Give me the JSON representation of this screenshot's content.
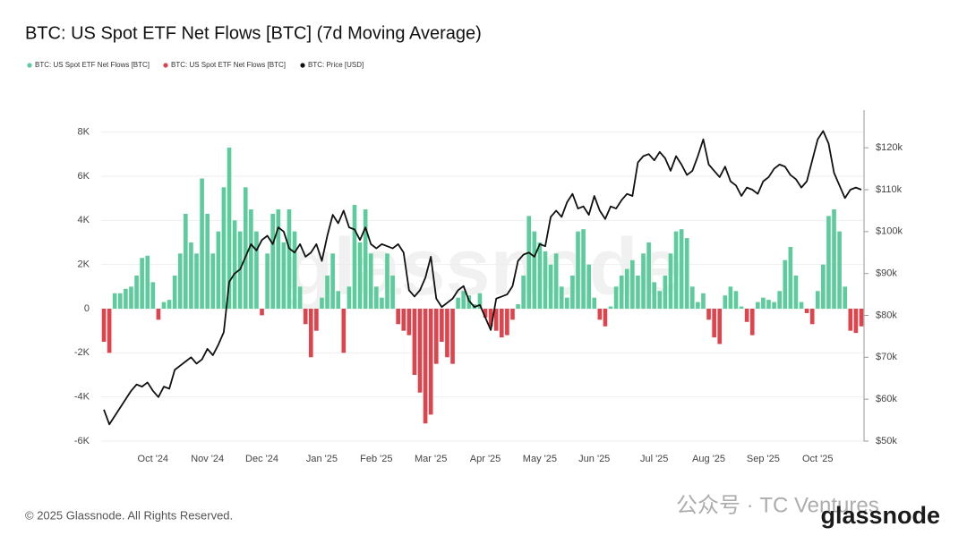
{
  "chart_data": {
    "type": "bar_line",
    "title": "BTC: US Spot ETF Net Flows [BTC] (7d Moving Average)",
    "watermark": "glassnode",
    "copyright": "© 2025 Glassnode. All Rights Reserved.",
    "logo": "glassnode",
    "channel_watermark": "公众号 · TC Ventures",
    "categories": [
      null,
      null,
      null,
      null,
      null,
      null,
      null,
      null,
      null,
      "Oct '24",
      null,
      null,
      null,
      null,
      null,
      null,
      null,
      null,
      null,
      "Nov '24",
      null,
      null,
      null,
      null,
      null,
      null,
      null,
      null,
      null,
      "Dec '24",
      null,
      null,
      null,
      null,
      null,
      null,
      null,
      null,
      null,
      null,
      "Jan '25",
      null,
      null,
      null,
      null,
      null,
      null,
      null,
      null,
      null,
      "Feb '25",
      null,
      null,
      null,
      null,
      null,
      null,
      null,
      null,
      null,
      "Mar '25",
      null,
      null,
      null,
      null,
      null,
      null,
      null,
      null,
      null,
      "Apr '25",
      null,
      null,
      null,
      null,
      null,
      null,
      null,
      null,
      null,
      "May '25",
      null,
      null,
      null,
      null,
      null,
      null,
      null,
      null,
      null,
      "Jun '25",
      null,
      null,
      null,
      null,
      null,
      null,
      null,
      null,
      null,
      null,
      "Jul '25",
      null,
      null,
      null,
      null,
      null,
      null,
      null,
      null,
      null,
      "Aug '25",
      null,
      null,
      null,
      null,
      null,
      null,
      null,
      null,
      null,
      "Sep '25",
      null,
      null,
      null,
      null,
      null,
      null,
      null,
      null,
      null,
      "Oct '25",
      null,
      null,
      null,
      null,
      null,
      null,
      null,
      null
    ],
    "series": [
      {
        "name": "BTC: US Spot ETF Net Flows [BTC]",
        "color": "#5ccc9c",
        "values": [
          null,
          null,
          700,
          700,
          900,
          1000,
          1500,
          2300,
          2400,
          1200,
          null,
          300,
          400,
          1500,
          2500,
          4300,
          3000,
          2500,
          5900,
          4300,
          2500,
          3500,
          5500,
          7300,
          4000,
          3500,
          5500,
          4500,
          3500,
          null,
          2500,
          4300,
          4500,
          3000,
          4500,
          3500,
          1000,
          null,
          null,
          null,
          500,
          1500,
          2500,
          800,
          null,
          1000,
          4700,
          3000,
          4500,
          2500,
          1000,
          500,
          2500,
          1500,
          null,
          null,
          null,
          null,
          null,
          null,
          null,
          null,
          null,
          null,
          null,
          500,
          800,
          600,
          200,
          700,
          null,
          null,
          null,
          null,
          null,
          null,
          200,
          1500,
          4200,
          3500,
          3000,
          2600,
          2000,
          2500,
          1000,
          500,
          1500,
          3500,
          3600,
          2000,
          500,
          null,
          null,
          100,
          1000,
          1500,
          1800,
          2200,
          1500,
          2500,
          3000,
          1200,
          800,
          1500,
          2500,
          3500,
          3600,
          3200,
          1000,
          300,
          700,
          null,
          null,
          null,
          600,
          1000,
          800,
          100,
          null,
          null,
          300,
          500,
          400,
          300,
          800,
          2200,
          2800,
          1500,
          300,
          null,
          null,
          800,
          2000,
          4200,
          4500,
          3500,
          1000,
          null,
          null,
          null
        ]
      },
      {
        "name": "BTC: US Spot ETF Net Flows [BTC]",
        "color": "#e0434c",
        "values": [
          -1500,
          -2000,
          null,
          null,
          null,
          null,
          null,
          null,
          null,
          null,
          -500,
          null,
          null,
          null,
          null,
          null,
          null,
          null,
          null,
          null,
          null,
          null,
          null,
          null,
          null,
          null,
          null,
          null,
          null,
          -300,
          null,
          null,
          null,
          null,
          null,
          null,
          null,
          -700,
          -2200,
          -1000,
          null,
          null,
          null,
          null,
          -2000,
          null,
          null,
          null,
          null,
          null,
          null,
          null,
          null,
          null,
          -700,
          -1000,
          -1200,
          -3000,
          -3800,
          -5200,
          -4800,
          -2500,
          -1500,
          -2200,
          -2500,
          null,
          null,
          null,
          null,
          null,
          -400,
          -800,
          -1000,
          -1300,
          -1200,
          -500,
          null,
          null,
          null,
          null,
          null,
          null,
          null,
          null,
          null,
          null,
          null,
          null,
          null,
          null,
          null,
          -500,
          -800,
          null,
          null,
          null,
          null,
          null,
          null,
          null,
          null,
          null,
          null,
          null,
          null,
          null,
          null,
          null,
          null,
          null,
          null,
          -500,
          -1300,
          -1600,
          null,
          null,
          null,
          null,
          -600,
          -1200,
          null,
          null,
          null,
          null,
          null,
          null,
          null,
          null,
          null,
          -200,
          -700,
          null,
          null,
          null,
          null,
          null,
          null,
          -1000,
          -1100,
          -800
        ]
      },
      {
        "name": "BTC: Price [USD]",
        "color": "#111111",
        "axis": "y2",
        "values": [
          57500,
          54000,
          56000,
          58000,
          60000,
          62000,
          63500,
          63000,
          64000,
          62000,
          60500,
          63000,
          62500,
          67000,
          68000,
          69000,
          70000,
          68500,
          69500,
          72000,
          70500,
          73000,
          76000,
          88000,
          90000,
          91000,
          94000,
          97000,
          95500,
          98000,
          99000,
          97000,
          101000,
          100000,
          96000,
          95000,
          97000,
          94000,
          95000,
          97000,
          93000,
          99000,
          104000,
          102000,
          105000,
          101000,
          100500,
          98000,
          101000,
          97000,
          96000,
          97000,
          96500,
          96000,
          97000,
          95000,
          86000,
          84500,
          86000,
          89000,
          94000,
          84000,
          82000,
          83000,
          84000,
          86000,
          87000,
          83500,
          82000,
          82500,
          79500,
          76500,
          84000,
          84500,
          85000,
          87000,
          93000,
          94500,
          95000,
          94000,
          97000,
          96500,
          103500,
          105000,
          103500,
          107000,
          109000,
          105500,
          106000,
          104000,
          108500,
          105000,
          103000,
          106000,
          105500,
          107500,
          109000,
          108500,
          116500,
          118000,
          118500,
          117000,
          119000,
          117500,
          114500,
          118000,
          116000,
          113500,
          114500,
          118000,
          122000,
          116000,
          114500,
          113000,
          115500,
          112000,
          111000,
          108500,
          110500,
          110000,
          109000,
          112000,
          113000,
          115000,
          116000,
          115500,
          113500,
          112500,
          110500,
          112000,
          117000,
          122000,
          124000,
          121000,
          114000,
          111000,
          108000,
          110000,
          110500,
          110000
        ]
      }
    ],
    "ylim": [
      -6000,
      9000
    ],
    "yticks": [
      {
        "value": -6000,
        "label": "-6K"
      },
      {
        "value": -4000,
        "label": "-4K"
      },
      {
        "value": -2000,
        "label": "-2K"
      },
      0,
      {
        "value": 2000,
        "label": "2K"
      },
      {
        "value": 4000,
        "label": "4K"
      },
      {
        "value": 6000,
        "label": "6K"
      },
      {
        "value": 8000,
        "label": "8K"
      }
    ],
    "y2lim": [
      50000,
      129000
    ],
    "y2ticks": [
      {
        "value": 50000,
        "label": "$50k"
      },
      {
        "value": 60000,
        "label": "$60k"
      },
      {
        "value": 70000,
        "label": "$70k"
      },
      {
        "value": 80000,
        "label": "$80k"
      },
      {
        "value": 90000,
        "label": "$90k"
      },
      {
        "value": 100000,
        "label": "$100k"
      },
      {
        "value": 110000,
        "label": "$110k"
      },
      {
        "value": 120000,
        "label": "$120k"
      }
    ],
    "grid": true
  }
}
